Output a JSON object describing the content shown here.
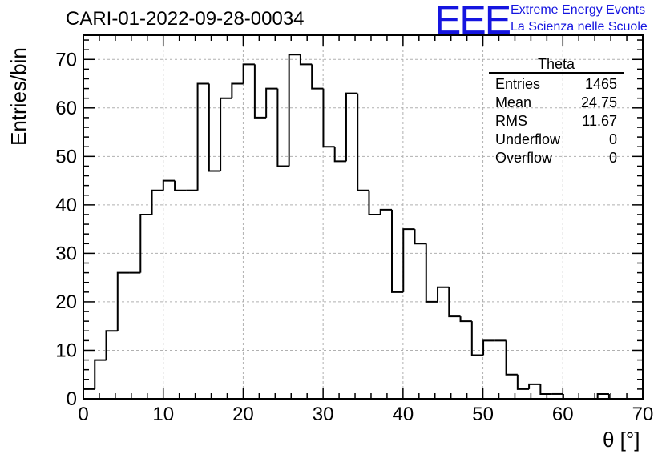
{
  "header": {
    "title": "CARI-01-2022-09-28-00034",
    "logo_text": "EEE",
    "brand_line1": "Extreme Energy Events",
    "brand_line2": "La Scienza nelle Scuole"
  },
  "stats_box": {
    "name": "Theta",
    "rows": [
      {
        "label": "Entries",
        "value": "1465"
      },
      {
        "label": "Mean",
        "value": "24.75"
      },
      {
        "label": "RMS",
        "value": "11.67"
      },
      {
        "label": "Underflow",
        "value": "0"
      },
      {
        "label": "Overflow",
        "value": "0"
      }
    ]
  },
  "colors": {
    "histogram_line": "#000000",
    "brand_blue": "#1515e0",
    "grid": "#b0b0b0"
  },
  "chart_data": {
    "type": "bar",
    "style": "step-histogram",
    "title": "CARI-01-2022-09-28-00034",
    "xlabel": "θ [°]",
    "ylabel": "Entries/bin",
    "xlim": [
      0,
      70
    ],
    "ylim": [
      0,
      75
    ],
    "grid": true,
    "bin_edges_start": 0,
    "bin_width": 1.43,
    "x_ticks": [
      0,
      10,
      20,
      30,
      40,
      50,
      60,
      70
    ],
    "y_ticks": [
      0,
      10,
      20,
      30,
      40,
      50,
      60,
      70
    ],
    "values": [
      2,
      8,
      14,
      26,
      26,
      38,
      43,
      45,
      43,
      43,
      65,
      47,
      62,
      65,
      69,
      58,
      64,
      48,
      71,
      69,
      64,
      52,
      49,
      63,
      43,
      38,
      39,
      22,
      35,
      32,
      20,
      23,
      17,
      16,
      9,
      12,
      12,
      5,
      2,
      3,
      1,
      1,
      0,
      0,
      0,
      1
    ]
  }
}
